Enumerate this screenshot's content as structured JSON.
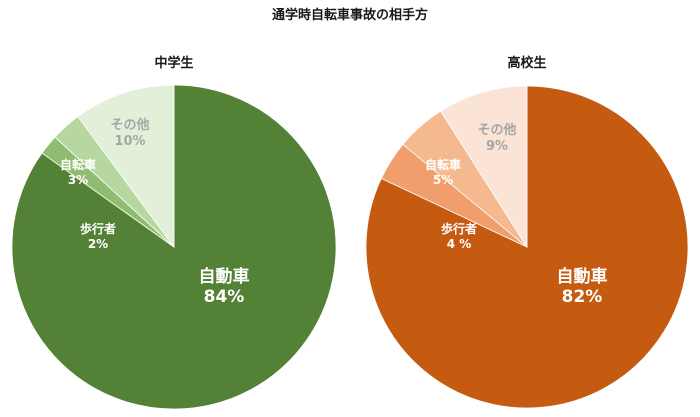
{
  "title": "通学時自転車事故の相手方",
  "charts": [
    {
      "subtitle": "中学生",
      "slices": [
        {
          "name": "自動車",
          "pct": "84%",
          "value": 84,
          "color": "#538135",
          "label_color": "#ffffff"
        },
        {
          "name": "歩行者",
          "pct": "2%",
          "value": 2,
          "color": "#8fbc6e",
          "label_color": "#ffffff"
        },
        {
          "name": "自転車",
          "pct": "3%",
          "value": 3,
          "color": "#b6d7a0",
          "label_color": "#ffffff"
        },
        {
          "name": "その他",
          "pct": "10%",
          "value": 10,
          "color": "#e2efd9",
          "label_color": "#a6a6a6"
        }
      ]
    },
    {
      "subtitle": "高校生",
      "slices": [
        {
          "name": "自動車",
          "pct": "82%",
          "value": 82,
          "color": "#c55a11",
          "label_color": "#ffffff"
        },
        {
          "name": "歩行者",
          "pct": "4 %",
          "value": 4,
          "color": "#ef9e6c",
          "label_color": "#ffffff"
        },
        {
          "name": "自転車",
          "pct": "5%",
          "value": 5,
          "color": "#f4b98f",
          "label_color": "#ffffff"
        },
        {
          "name": "その他",
          "pct": "9%",
          "value": 9,
          "color": "#fbe4d6",
          "label_color": "#a6a6a6"
        }
      ]
    }
  ],
  "chart_data": [
    {
      "type": "pie",
      "title": "通学時自転車事故の相手方 — 中学生",
      "categories": [
        "自動車",
        "歩行者",
        "自転車",
        "その他"
      ],
      "values": [
        84,
        2,
        3,
        10
      ],
      "unit": "%"
    },
    {
      "type": "pie",
      "title": "通学時自転車事故の相手方 — 高校生",
      "categories": [
        "自動車",
        "歩行者",
        "自転車",
        "その他"
      ],
      "values": [
        82,
        4,
        5,
        9
      ],
      "unit": "%"
    }
  ]
}
